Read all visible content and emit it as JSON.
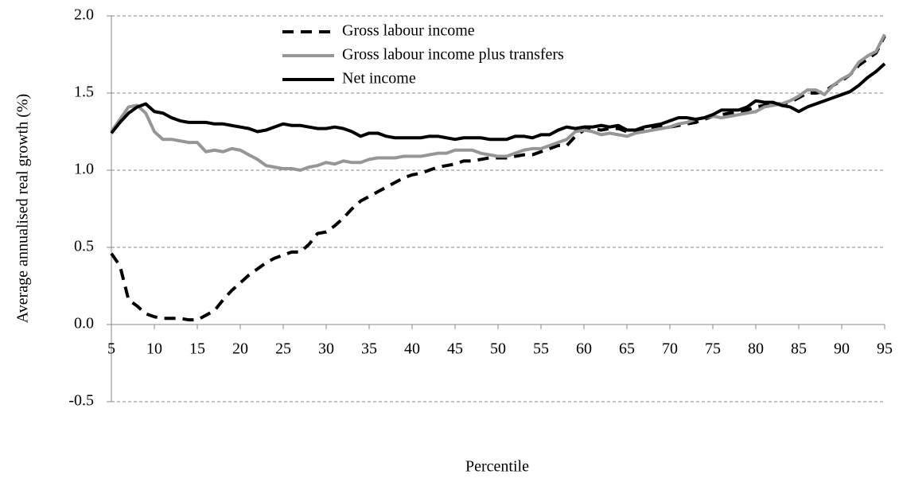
{
  "chart_data": {
    "type": "line",
    "x_label": "Percentile",
    "y_label": "Average annualised real growth (%)",
    "x": [
      5,
      6,
      7,
      8,
      9,
      10,
      11,
      12,
      13,
      14,
      15,
      16,
      17,
      18,
      19,
      20,
      21,
      22,
      23,
      24,
      25,
      26,
      27,
      28,
      29,
      30,
      31,
      32,
      33,
      34,
      35,
      36,
      37,
      38,
      39,
      40,
      41,
      42,
      43,
      44,
      45,
      46,
      47,
      48,
      49,
      50,
      51,
      52,
      53,
      54,
      55,
      56,
      57,
      58,
      59,
      60,
      61,
      62,
      63,
      64,
      65,
      66,
      67,
      68,
      69,
      70,
      71,
      72,
      73,
      74,
      75,
      76,
      77,
      78,
      79,
      80,
      81,
      82,
      83,
      84,
      85,
      86,
      87,
      88,
      89,
      90,
      91,
      92,
      93,
      94,
      95
    ],
    "xlim": [
      5,
      95
    ],
    "xticks": [
      5,
      10,
      15,
      20,
      25,
      30,
      35,
      40,
      45,
      50,
      55,
      60,
      65,
      70,
      75,
      80,
      85,
      90,
      95
    ],
    "ylim": [
      -0.5,
      2.0
    ],
    "yticks": [
      -0.5,
      {
        "value": 0,
        "label": "0.0"
      },
      0.5,
      {
        "value": 1,
        "label": "1.0"
      },
      1.5,
      {
        "value": 2,
        "label": "2.0"
      }
    ],
    "grid": true,
    "series": [
      {
        "name": "Gross labour income",
        "color": "#000000",
        "dashed": true,
        "values": [
          0.46,
          0.38,
          0.16,
          0.12,
          0.07,
          0.05,
          0.04,
          0.04,
          0.04,
          0.03,
          0.03,
          0.06,
          0.09,
          0.16,
          0.22,
          0.27,
          0.32,
          0.36,
          0.4,
          0.43,
          0.45,
          0.47,
          0.47,
          0.52,
          0.59,
          0.6,
          0.64,
          0.69,
          0.75,
          0.8,
          0.83,
          0.86,
          0.89,
          0.92,
          0.95,
          0.97,
          0.98,
          1.0,
          1.02,
          1.03,
          1.04,
          1.06,
          1.06,
          1.07,
          1.08,
          1.08,
          1.08,
          1.09,
          1.1,
          1.1,
          1.12,
          1.14,
          1.16,
          1.16,
          1.22,
          1.26,
          1.27,
          1.26,
          1.27,
          1.27,
          1.25,
          1.26,
          1.27,
          1.27,
          1.28,
          1.28,
          1.29,
          1.3,
          1.31,
          1.33,
          1.35,
          1.36,
          1.37,
          1.38,
          1.39,
          1.41,
          1.42,
          1.43,
          1.43,
          1.44,
          1.47,
          1.5,
          1.5,
          1.51,
          1.55,
          1.58,
          1.62,
          1.68,
          1.72,
          1.76,
          1.87
        ]
      },
      {
        "name": "Gross labour income plus transfers",
        "color": "#969696",
        "dashed": false,
        "values": [
          1.25,
          1.33,
          1.41,
          1.42,
          1.37,
          1.25,
          1.2,
          1.2,
          1.19,
          1.18,
          1.18,
          1.12,
          1.13,
          1.12,
          1.14,
          1.13,
          1.1,
          1.07,
          1.03,
          1.02,
          1.01,
          1.01,
          1.0,
          1.02,
          1.03,
          1.05,
          1.04,
          1.06,
          1.05,
          1.05,
          1.07,
          1.08,
          1.08,
          1.08,
          1.09,
          1.09,
          1.09,
          1.1,
          1.11,
          1.11,
          1.13,
          1.13,
          1.13,
          1.11,
          1.1,
          1.09,
          1.09,
          1.11,
          1.13,
          1.14,
          1.14,
          1.16,
          1.18,
          1.2,
          1.25,
          1.26,
          1.25,
          1.23,
          1.24,
          1.23,
          1.22,
          1.24,
          1.25,
          1.26,
          1.27,
          1.28,
          1.3,
          1.31,
          1.33,
          1.34,
          1.35,
          1.34,
          1.35,
          1.36,
          1.37,
          1.38,
          1.41,
          1.42,
          1.43,
          1.45,
          1.48,
          1.52,
          1.52,
          1.49,
          1.55,
          1.59,
          1.62,
          1.7,
          1.74,
          1.77,
          1.88
        ]
      },
      {
        "name": "Net income",
        "color": "#000000",
        "dashed": false,
        "values": [
          1.24,
          1.31,
          1.37,
          1.41,
          1.43,
          1.38,
          1.37,
          1.34,
          1.32,
          1.31,
          1.31,
          1.31,
          1.3,
          1.3,
          1.29,
          1.28,
          1.27,
          1.25,
          1.26,
          1.28,
          1.3,
          1.29,
          1.29,
          1.28,
          1.27,
          1.27,
          1.28,
          1.27,
          1.25,
          1.22,
          1.24,
          1.24,
          1.22,
          1.21,
          1.21,
          1.21,
          1.21,
          1.22,
          1.22,
          1.21,
          1.2,
          1.21,
          1.21,
          1.21,
          1.2,
          1.2,
          1.2,
          1.22,
          1.22,
          1.21,
          1.23,
          1.23,
          1.26,
          1.28,
          1.27,
          1.28,
          1.28,
          1.29,
          1.28,
          1.29,
          1.26,
          1.26,
          1.28,
          1.29,
          1.3,
          1.32,
          1.34,
          1.34,
          1.33,
          1.34,
          1.36,
          1.39,
          1.39,
          1.39,
          1.41,
          1.45,
          1.44,
          1.44,
          1.42,
          1.41,
          1.38,
          1.41,
          1.43,
          1.45,
          1.47,
          1.49,
          1.51,
          1.55,
          1.6,
          1.64,
          1.69
        ]
      }
    ]
  }
}
